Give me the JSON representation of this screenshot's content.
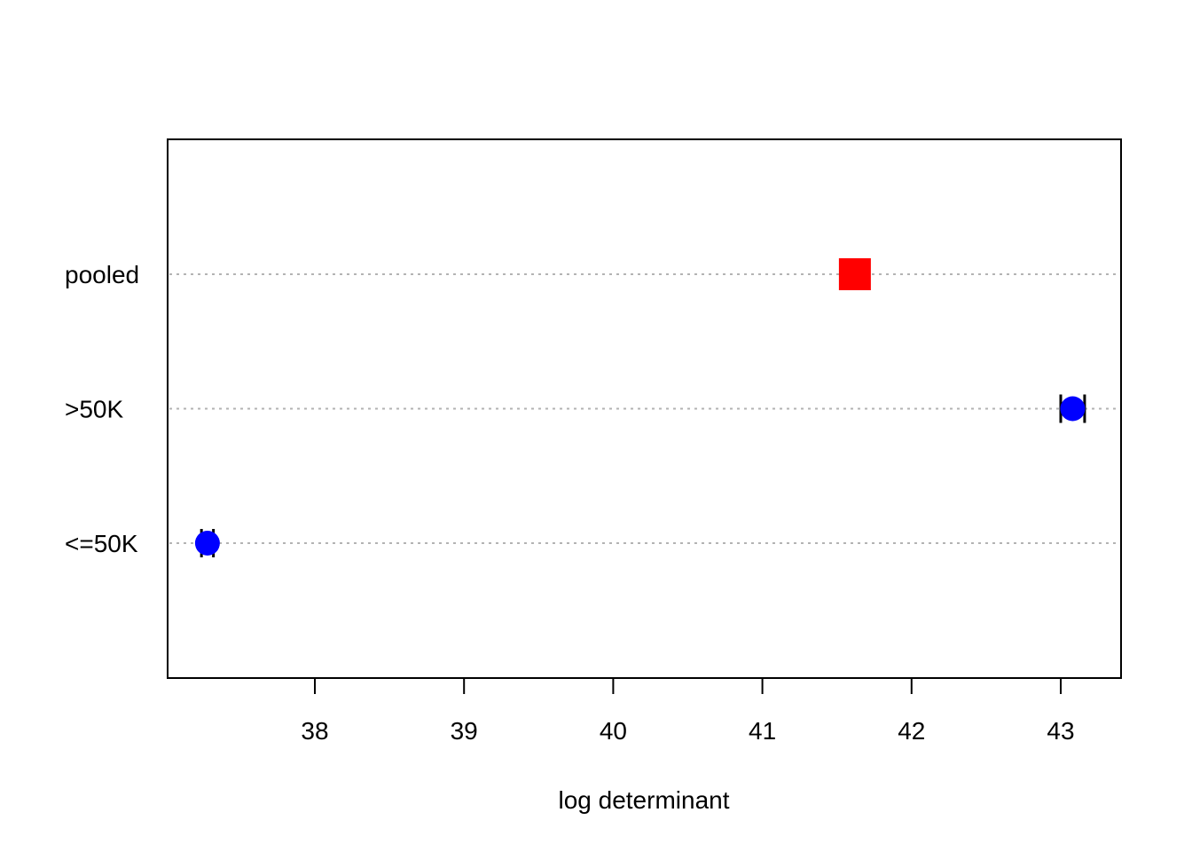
{
  "chart_data": {
    "type": "scatter",
    "xlabel": "log determinant",
    "ylabel": "",
    "xlim": [
      37.0,
      43.4
    ],
    "x_ticks": [
      "38",
      "39",
      "40",
      "41",
      "42",
      "43"
    ],
    "x_tick_values": [
      38,
      39,
      40,
      41,
      42,
      43
    ],
    "grid": "horizontal dotted",
    "categories": [
      "<=50K",
      ">50K",
      "pooled"
    ],
    "points": [
      {
        "category": "<=50K",
        "value": 37.28,
        "ci": [
          37.24,
          37.32
        ],
        "marker": "circle",
        "color": "#0000ff"
      },
      {
        "category": ">50K",
        "value": 43.08,
        "ci": [
          43.0,
          43.16
        ],
        "marker": "circle",
        "color": "#0000ff"
      },
      {
        "category": "pooled",
        "value": 41.62,
        "marker": "square",
        "color": "#ff0000"
      }
    ]
  }
}
